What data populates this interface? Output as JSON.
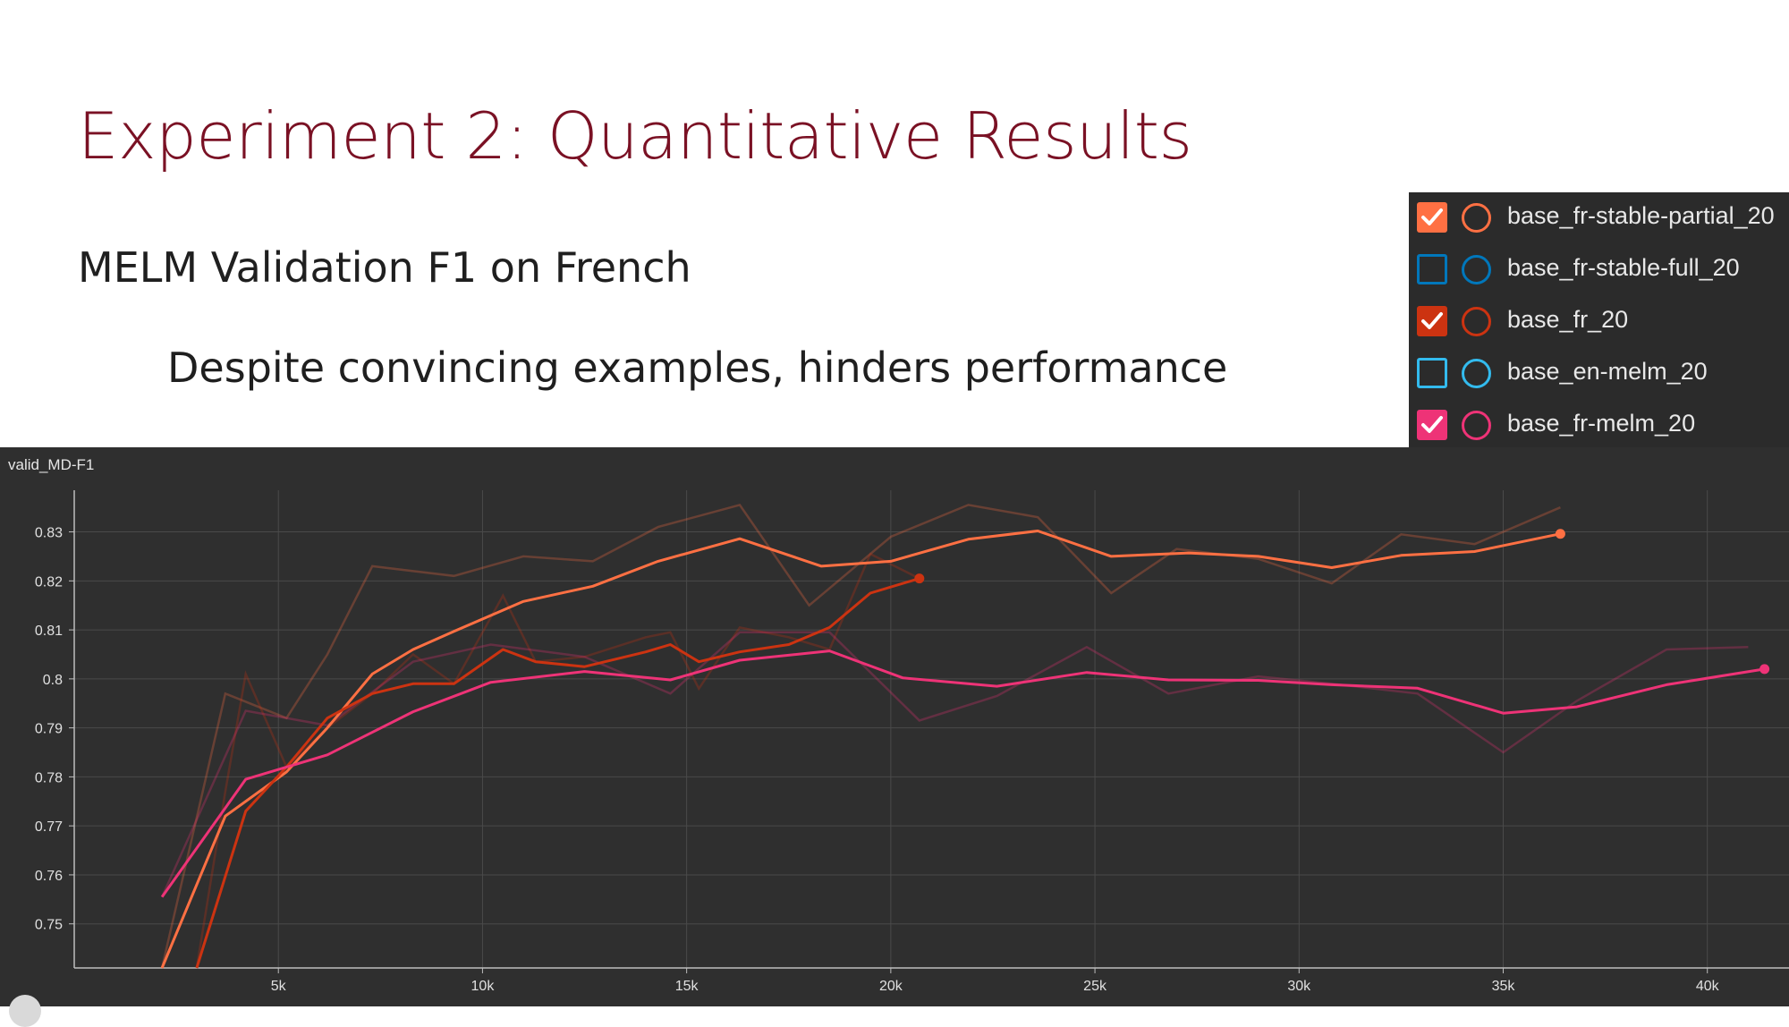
{
  "slide": {
    "title": "Experiment 2: Quantitative Results",
    "subtitle": "MELM Validation F1 on French",
    "note": "Despite convincing examples, hinders performance",
    "title_color": "#7a1124"
  },
  "legend": {
    "items": [
      {
        "label": "base_fr-stable-partial_20",
        "checked": true,
        "color": "#ff7043"
      },
      {
        "label": "base_fr-stable-full_20",
        "checked": false,
        "color": "#0077bb"
      },
      {
        "label": "base_fr_20",
        "checked": true,
        "color": "#cc3311"
      },
      {
        "label": "base_en-melm_20",
        "checked": false,
        "color": "#33bbee"
      },
      {
        "label": "base_fr-melm_20",
        "checked": true,
        "color": "#ee3377"
      }
    ]
  },
  "chart_data": {
    "type": "line",
    "title": "valid_MD-F1",
    "xlabel": "",
    "ylabel": "",
    "xlim": [
      0,
      42000
    ],
    "ylim": [
      0.741,
      0.8385
    ],
    "x_ticks": [
      5000,
      10000,
      15000,
      20000,
      25000,
      30000,
      35000,
      40000
    ],
    "x_tick_labels": [
      "5k",
      "10k",
      "15k",
      "20k",
      "25k",
      "30k",
      "35k",
      "40k"
    ],
    "y_ticks": [
      0.75,
      0.76,
      0.77,
      0.78,
      0.79,
      0.8,
      0.81,
      0.82,
      0.83
    ],
    "y_tick_labels": [
      "0.75",
      "0.76",
      "0.77",
      "0.78",
      "0.79",
      "0.8",
      "0.81",
      "0.82",
      "0.83"
    ],
    "grid": true,
    "background": "#2f2f2f",
    "series": [
      {
        "name": "base_fr-stable-partial_20",
        "color": "#ff7043",
        "smoothed": [
          [
            2150,
            0.741
          ],
          [
            3700,
            0.772
          ],
          [
            5200,
            0.781
          ],
          [
            6200,
            0.79
          ],
          [
            7300,
            0.801
          ],
          [
            8300,
            0.806
          ],
          [
            9300,
            0.8097
          ],
          [
            11000,
            0.8158
          ],
          [
            12700,
            0.8189
          ],
          [
            14300,
            0.824
          ],
          [
            16300,
            0.8286
          ],
          [
            18300,
            0.823
          ],
          [
            20000,
            0.824
          ],
          [
            21900,
            0.8285
          ],
          [
            23600,
            0.8302
          ],
          [
            25400,
            0.825
          ],
          [
            27300,
            0.8257
          ],
          [
            29000,
            0.825
          ],
          [
            30800,
            0.8227
          ],
          [
            32500,
            0.8252
          ],
          [
            34300,
            0.826
          ],
          [
            36400,
            0.8296
          ]
        ],
        "raw": [
          [
            2150,
            0.741
          ],
          [
            3700,
            0.797
          ],
          [
            5200,
            0.792
          ],
          [
            6200,
            0.805
          ],
          [
            7300,
            0.823
          ],
          [
            9300,
            0.821
          ],
          [
            11000,
            0.825
          ],
          [
            12700,
            0.824
          ],
          [
            14300,
            0.831
          ],
          [
            16300,
            0.8355
          ],
          [
            18000,
            0.815
          ],
          [
            20000,
            0.829
          ],
          [
            21900,
            0.8355
          ],
          [
            23600,
            0.833
          ],
          [
            25400,
            0.8175
          ],
          [
            27000,
            0.8265
          ],
          [
            29000,
            0.8245
          ],
          [
            30800,
            0.8195
          ],
          [
            32500,
            0.8295
          ],
          [
            34300,
            0.8275
          ],
          [
            36400,
            0.835
          ]
        ]
      },
      {
        "name": "base_fr_20",
        "color": "#cc3311",
        "smoothed": [
          [
            3000,
            0.741
          ],
          [
            4200,
            0.773
          ],
          [
            5200,
            0.782
          ],
          [
            6200,
            0.792
          ],
          [
            7300,
            0.797
          ],
          [
            8300,
            0.799
          ],
          [
            9300,
            0.799
          ],
          [
            10500,
            0.806
          ],
          [
            11300,
            0.8035
          ],
          [
            12500,
            0.8025
          ],
          [
            14000,
            0.8055
          ],
          [
            14600,
            0.807
          ],
          [
            15300,
            0.8035
          ],
          [
            16300,
            0.8055
          ],
          [
            17500,
            0.807
          ],
          [
            18500,
            0.8105
          ],
          [
            19500,
            0.8175
          ],
          [
            20700,
            0.8205
          ]
        ],
        "raw": [
          [
            3000,
            0.741
          ],
          [
            3700,
            0.777
          ],
          [
            4200,
            0.801
          ],
          [
            5200,
            0.782
          ],
          [
            6200,
            0.79
          ],
          [
            7300,
            0.797
          ],
          [
            8300,
            0.805
          ],
          [
            9300,
            0.799
          ],
          [
            10500,
            0.817
          ],
          [
            11300,
            0.8035
          ],
          [
            12500,
            0.8045
          ],
          [
            14000,
            0.8085
          ],
          [
            14600,
            0.8095
          ],
          [
            15300,
            0.798
          ],
          [
            16300,
            0.8105
          ],
          [
            17500,
            0.8085
          ],
          [
            18500,
            0.806
          ],
          [
            19500,
            0.8255
          ],
          [
            20700,
            0.8205
          ]
        ]
      },
      {
        "name": "base_fr-melm_20",
        "color": "#ee3377",
        "smoothed": [
          [
            2150,
            0.7555
          ],
          [
            4200,
            0.7795
          ],
          [
            6200,
            0.7845
          ],
          [
            8300,
            0.7933
          ],
          [
            10200,
            0.7993
          ],
          [
            12500,
            0.8015
          ],
          [
            14600,
            0.7998
          ],
          [
            16300,
            0.8038
          ],
          [
            18500,
            0.8057
          ],
          [
            20300,
            0.8002
          ],
          [
            22600,
            0.7985
          ],
          [
            24800,
            0.8013
          ],
          [
            26800,
            0.7998
          ],
          [
            29000,
            0.7997
          ],
          [
            30800,
            0.7988
          ],
          [
            32900,
            0.7981
          ],
          [
            35000,
            0.793
          ],
          [
            36800,
            0.7943
          ],
          [
            39000,
            0.7988
          ],
          [
            41400,
            0.802
          ]
        ],
        "raw": [
          [
            2150,
            0.7555
          ],
          [
            4200,
            0.7935
          ],
          [
            6200,
            0.7905
          ],
          [
            8300,
            0.8035
          ],
          [
            10200,
            0.807
          ],
          [
            12500,
            0.8045
          ],
          [
            14600,
            0.797
          ],
          [
            16300,
            0.8095
          ],
          [
            18500,
            0.8095
          ],
          [
            20700,
            0.7915
          ],
          [
            22600,
            0.7965
          ],
          [
            24800,
            0.8065
          ],
          [
            26800,
            0.797
          ],
          [
            29000,
            0.8005
          ],
          [
            30800,
            0.799
          ],
          [
            32900,
            0.797
          ],
          [
            35000,
            0.785
          ],
          [
            36800,
            0.7955
          ],
          [
            39000,
            0.806
          ],
          [
            41000,
            0.8065
          ]
        ]
      }
    ]
  }
}
